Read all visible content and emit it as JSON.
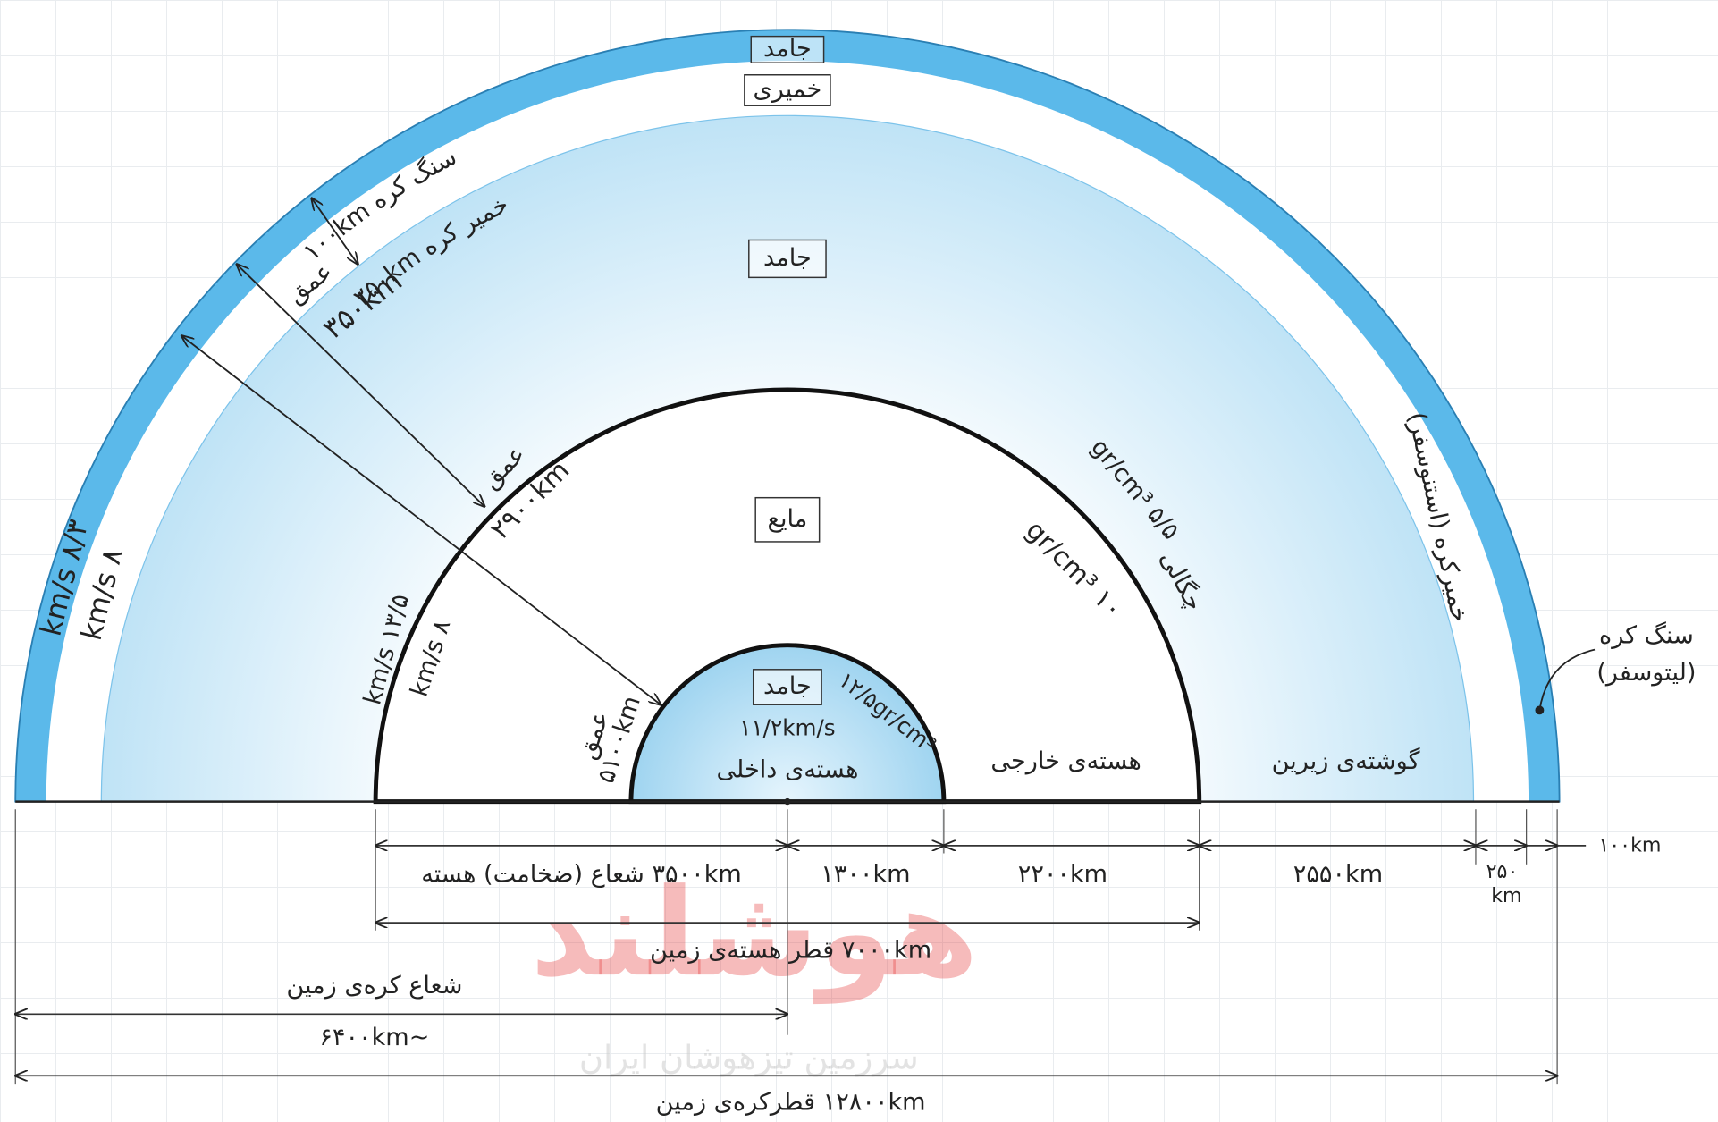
{
  "layers": {
    "lithosphere_state": "جامد",
    "asthenosphere_state": "خمیری",
    "lithosphere_arc": "سنگ کره ۱۰۰km",
    "asthenosphere_arc": "خمیر کره ۲۵۰km",
    "depth_word_1": "عمق",
    "depth_1": "۳۵۰km",
    "mantle_state": "جامد",
    "depth_word_2": "عمق",
    "depth_2": "۲۹۰۰km",
    "outer_core_state": "مایع",
    "density_word": "چگالی",
    "density_mantle": "۵/۵ gr/cm³",
    "density_outer_core": "۱۰ gr/cm³",
    "speed_crust_1": "۸/۳ km/s",
    "speed_crust_2": "۸ km/s",
    "speed_core_1": "۱۳/۵ km/s",
    "speed_core_2": "۸ km/s",
    "depth_word_3": "عمق",
    "depth_3": "۵۱۰۰km",
    "inner_core_state": "جامد",
    "inner_core_speed": "۱۱/۲km/s",
    "inner_core_density": "۱۲/۵gr/cm³",
    "inner_core": "هسته‌ی داخلی",
    "outer_core": "هسته‌ی خارجی",
    "lower_mantle": "گوشته‌ی زیرین",
    "asthenosphere": "خمیرکره (استنوسفر)",
    "lithosphere_1": "سنگ کره",
    "lithosphere_2": "(لیتوسفر)"
  },
  "dimensions": {
    "core_radius": "۳۵۰۰km شعاع (ضخامت) هسته",
    "inner_core_radius": "۱۳۰۰km",
    "outer_core_thickness": "۲۲۰۰km",
    "lower_mantle_thickness": "۲۵۵۰km",
    "asthenosphere_thickness_1": "۲۵۰",
    "asthenosphere_thickness_2": "km",
    "lithosphere_thickness": "۱۰۰km",
    "core_diameter": "۷۰۰۰km قطر هسته‌ی زمین",
    "earth_radius_label": "شعاع کره‌ی زمین",
    "earth_radius": "~۶۴۰۰km",
    "earth_diameter": "۱۲۸۰۰km قطرکره‌ی زمین"
  },
  "watermark": {
    "brand": "هوشلند",
    "slogan": "سرزمین تیزهوشان ایران"
  }
}
